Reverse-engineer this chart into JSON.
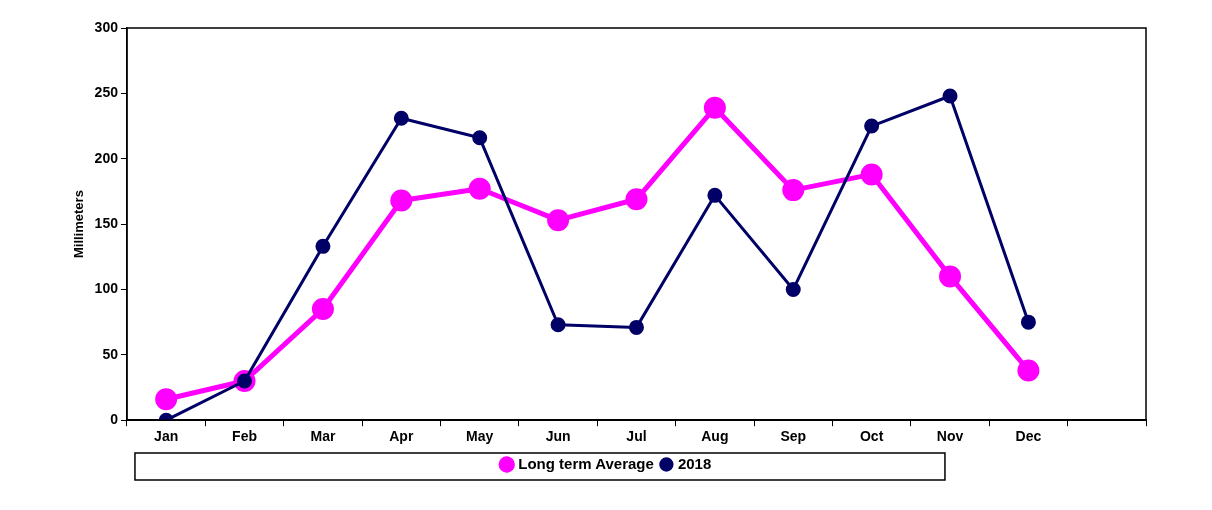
{
  "chart_data": {
    "type": "line",
    "ylabel": "Millimeters",
    "categories": [
      "Jan",
      "Feb",
      "Mar",
      "Apr",
      "May",
      "Jun",
      "Jul",
      "Aug",
      "Sep",
      "Oct",
      "Nov",
      "Dec",
      null
    ],
    "series": [
      {
        "name": "Long term Average",
        "color": "#ff00ff",
        "values": [
          16,
          30,
          85,
          168,
          177,
          153,
          169,
          239,
          176,
          188,
          110,
          38,
          null
        ]
      },
      {
        "name": "2018",
        "color": "#000066",
        "values": [
          0,
          30,
          133,
          231,
          216,
          73,
          71,
          172,
          100,
          225,
          248,
          75,
          null
        ]
      }
    ],
    "ylim": [
      0,
      300
    ],
    "yticks": [
      0,
      50,
      100,
      150,
      200,
      250,
      300
    ],
    "grid": false,
    "legend": "bottom",
    "marker": "circle",
    "line_style": "solid"
  }
}
